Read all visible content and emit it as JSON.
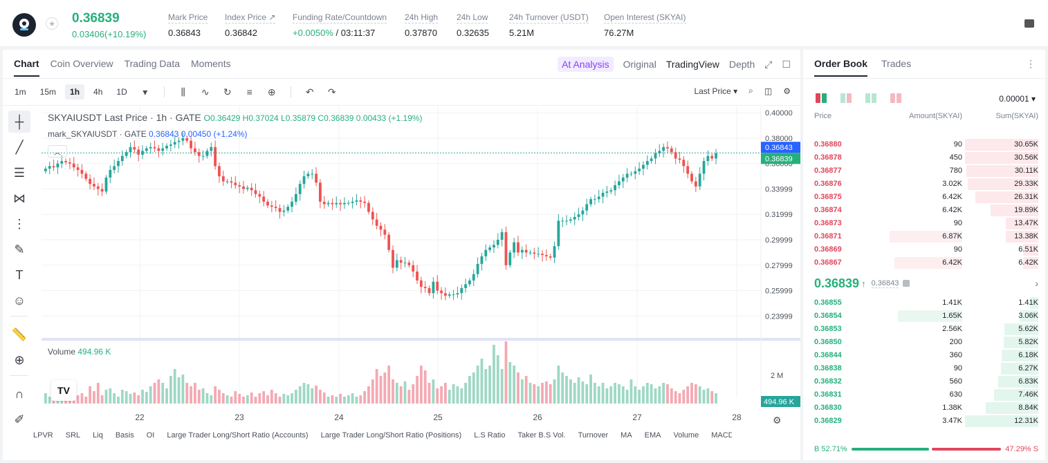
{
  "header": {
    "last_price": "0.36839",
    "change": "0.03406(+10.19%)",
    "stats": [
      {
        "label": "Mark Price",
        "value": "0.36843"
      },
      {
        "label": "Index Price ↗",
        "value": "0.36842"
      },
      {
        "label": "Funding Rate/Countdown",
        "value_green": "+0.0050%",
        "value": " / 03:11:37"
      },
      {
        "label": "24h High",
        "value": "0.37870"
      },
      {
        "label": "24h Low",
        "value": "0.32635"
      },
      {
        "label": "24h Turnover (USDT)",
        "value": "5.21M"
      },
      {
        "label": "Open Interest (SKYAI)",
        "value": "76.27M"
      }
    ]
  },
  "chart_panel": {
    "tabs": [
      "Chart",
      "Coin Overview",
      "Trading Data",
      "Moments"
    ],
    "right_tabs": {
      "ai": "A͏t Analysis",
      "original": "Original",
      "tradingview": "TradingView",
      "depth": "Depth"
    },
    "timeframes": [
      "1m",
      "15m",
      "1h",
      "4h",
      "1D"
    ],
    "price_type": "Last Price ▾",
    "legend": {
      "title": "SKYAIUSDT Last Price · 1h · GATE",
      "ohlc": "O0.36429 H0.37024 L0.35879 C0.36839 0.00433 (+1.19%)",
      "mark_label": "mark_SKYAIUSDT · GATE",
      "mark_values": "0.36843 0.00450 (+1.24%)"
    },
    "volume_label": "Volume",
    "volume_value": "494.96 K",
    "tv_logo": "TV",
    "indicators": [
      "LPVR",
      "SRL",
      "Liq",
      "Basis",
      "OI",
      "Large Trader Long/Short Ratio (Accounts)",
      "Large Trader Long/Short Ratio (Positions)",
      "L.S Ratio",
      "Taker B.S Vol.",
      "Turnover",
      "MA",
      "EMA",
      "Volume",
      "MACD"
    ]
  },
  "chart_data": {
    "type": "candlestick",
    "title": "SKYAIUSDT Last Price · 1h · GATE",
    "price_axis_ticks": [
      "0.40000",
      "0.38000",
      "0.36000",
      "0.33999",
      "0.31999",
      "0.29999",
      "0.27999",
      "0.25999",
      "0.23999"
    ],
    "price_axis_values": [
      0.4,
      0.38,
      0.36,
      0.34,
      0.32,
      0.3,
      0.28,
      0.26,
      0.24
    ],
    "ylim": [
      0.232,
      0.405
    ],
    "time_axis_ticks": [
      "22",
      "23",
      "24",
      "25",
      "26",
      "27",
      "28"
    ],
    "price_tags": [
      {
        "label": "0.36843",
        "value": 0.36843,
        "color": "#2962ff"
      },
      {
        "label": "0.36839",
        "value": 0.36839,
        "color": "#25b07b"
      }
    ],
    "volume_axis_tick": "2 M",
    "volume_tag": "494.96 K",
    "up_color": "#26a69a",
    "down_color": "#ef5350",
    "close_path": [
      0.356,
      0.358,
      0.357,
      0.36,
      0.362,
      0.361,
      0.36,
      0.357,
      0.355,
      0.352,
      0.348,
      0.344,
      0.342,
      0.34,
      0.338,
      0.349,
      0.355,
      0.358,
      0.362,
      0.366,
      0.369,
      0.373,
      0.371,
      0.367,
      0.37,
      0.372,
      0.373,
      0.372,
      0.37,
      0.372,
      0.374,
      0.375,
      0.377,
      0.378,
      0.38,
      0.378,
      0.372,
      0.369,
      0.366,
      0.366,
      0.37,
      0.373,
      0.358,
      0.35,
      0.346,
      0.346,
      0.345,
      0.343,
      0.342,
      0.34,
      0.341,
      0.339,
      0.336,
      0.334,
      0.33,
      0.327,
      0.326,
      0.325,
      0.322,
      0.323,
      0.326,
      0.33,
      0.336,
      0.344,
      0.35,
      0.352,
      0.352,
      0.345,
      0.33,
      0.328,
      0.329,
      0.328,
      0.329,
      0.328,
      0.329,
      0.329,
      0.33,
      0.331,
      0.33,
      0.329,
      0.322,
      0.316,
      0.311,
      0.308,
      0.304,
      0.292,
      0.278,
      0.284,
      0.282,
      0.282,
      0.28,
      0.275,
      0.268,
      0.263,
      0.262,
      0.258,
      0.267,
      0.26,
      0.258,
      0.256,
      0.257,
      0.257,
      0.258,
      0.262,
      0.265,
      0.268,
      0.273,
      0.281,
      0.287,
      0.292,
      0.294,
      0.296,
      0.3,
      0.306,
      0.28,
      0.29,
      0.298,
      0.29,
      0.292,
      0.29,
      0.29,
      0.289,
      0.289,
      0.288,
      0.287,
      0.286,
      0.295,
      0.315,
      0.315,
      0.315,
      0.316,
      0.318,
      0.32,
      0.323,
      0.328,
      0.332,
      0.332,
      0.334,
      0.337,
      0.338,
      0.339,
      0.343,
      0.346,
      0.349,
      0.352,
      0.352,
      0.354,
      0.356,
      0.359,
      0.362,
      0.364,
      0.368,
      0.37,
      0.373,
      0.372,
      0.369,
      0.364,
      0.363,
      0.358,
      0.352,
      0.346,
      0.342,
      0.352,
      0.362,
      0.366,
      0.364,
      0.368
    ],
    "volume_rel": [
      0.15,
      0.1,
      0.12,
      0.18,
      0.1,
      0.22,
      0.3,
      0.2,
      0.12,
      0.15,
      0.1,
      0.25,
      0.18,
      0.3,
      0.12,
      0.2,
      0.22,
      0.15,
      0.1,
      0.2,
      0.18,
      0.14,
      0.16,
      0.12,
      0.2,
      0.17,
      0.25,
      0.3,
      0.35,
      0.3,
      0.22,
      0.4,
      0.5,
      0.38,
      0.42,
      0.3,
      0.25,
      0.3,
      0.2,
      0.22,
      0.15,
      0.12,
      0.25,
      0.2,
      0.15,
      0.12,
      0.1,
      0.18,
      0.14,
      0.1,
      0.12,
      0.16,
      0.1,
      0.15,
      0.18,
      0.12,
      0.2,
      0.15,
      0.1,
      0.14,
      0.12,
      0.15,
      0.2,
      0.25,
      0.3,
      0.28,
      0.22,
      0.26,
      0.2,
      0.16,
      0.1,
      0.12,
      0.1,
      0.14,
      0.1,
      0.12,
      0.15,
      0.1,
      0.12,
      0.18,
      0.25,
      0.35,
      0.5,
      0.4,
      0.45,
      0.55,
      0.35,
      0.3,
      0.25,
      0.32,
      0.2,
      0.28,
      0.4,
      0.55,
      0.48,
      0.3,
      0.35,
      0.22,
      0.25,
      0.3,
      0.2,
      0.28,
      0.25,
      0.22,
      0.3,
      0.4,
      0.45,
      0.55,
      0.65,
      0.5,
      0.55,
      0.85,
      0.7,
      0.5,
      0.9,
      0.6,
      0.55,
      0.45,
      0.35,
      0.4,
      0.3,
      0.28,
      0.25,
      0.3,
      0.32,
      0.28,
      0.35,
      0.55,
      0.45,
      0.4,
      0.35,
      0.3,
      0.38,
      0.32,
      0.28,
      0.42,
      0.3,
      0.25,
      0.3,
      0.22,
      0.25,
      0.3,
      0.28,
      0.25,
      0.2,
      0.35,
      0.25,
      0.2,
      0.25,
      0.3,
      0.28,
      0.22,
      0.25,
      0.3,
      0.28,
      0.22,
      0.18,
      0.15,
      0.2,
      0.25,
      0.3,
      0.28,
      0.25,
      0.2,
      0.22,
      0.18,
      0.15
    ]
  },
  "orderbook": {
    "tabs": [
      "Order Book",
      "Trades"
    ],
    "precision": "0.00001 ▾",
    "headers": [
      "Price",
      "Amount(SKYAI)",
      "Sum(SKYAI)"
    ],
    "asks": [
      {
        "price": "0.36880",
        "amount": "90",
        "sum": "30.65K",
        "sum_rel": 1.0,
        "amt_rel": 0.0
      },
      {
        "price": "0.36878",
        "amount": "450",
        "sum": "30.56K",
        "sum_rel": 0.997,
        "amt_rel": 0.0
      },
      {
        "price": "0.36877",
        "amount": "780",
        "sum": "30.11K",
        "sum_rel": 0.98,
        "amt_rel": 0.0
      },
      {
        "price": "0.36876",
        "amount": "3.02K",
        "sum": "29.33K",
        "sum_rel": 0.96,
        "amt_rel": 0.0
      },
      {
        "price": "0.36875",
        "amount": "6.42K",
        "sum": "26.31K",
        "sum_rel": 0.86,
        "amt_rel": 0.0
      },
      {
        "price": "0.36874",
        "amount": "6.42K",
        "sum": "19.89K",
        "sum_rel": 0.65,
        "amt_rel": 0.0
      },
      {
        "price": "0.36873",
        "amount": "90",
        "sum": "13.47K",
        "sum_rel": 0.44,
        "amt_rel": 0.0
      },
      {
        "price": "0.36871",
        "amount": "6.87K",
        "sum": "13.38K",
        "sum_rel": 0.44,
        "amt_rel": 0.7
      },
      {
        "price": "0.36869",
        "amount": "90",
        "sum": "6.51K",
        "sum_rel": 0.21,
        "amt_rel": 0.0
      },
      {
        "price": "0.36867",
        "amount": "6.42K",
        "sum": "6.42K",
        "sum_rel": 0.21,
        "amt_rel": 0.65
      }
    ],
    "mid_price": "0.36839",
    "mid_arrow": "↑",
    "mark_price": "0.36843",
    "bids": [
      {
        "price": "0.36855",
        "amount": "1.41K",
        "sum": "1.41K",
        "sum_rel": 0.11,
        "amt_rel": 0.0
      },
      {
        "price": "0.36854",
        "amount": "1.65K",
        "sum": "3.06K",
        "sum_rel": 0.25,
        "amt_rel": 0.62
      },
      {
        "price": "0.36853",
        "amount": "2.56K",
        "sum": "5.62K",
        "sum_rel": 0.46,
        "amt_rel": 0.0
      },
      {
        "price": "0.36850",
        "amount": "200",
        "sum": "5.82K",
        "sum_rel": 0.47,
        "amt_rel": 0.0
      },
      {
        "price": "0.36844",
        "amount": "360",
        "sum": "6.18K",
        "sum_rel": 0.5,
        "amt_rel": 0.0
      },
      {
        "price": "0.36838",
        "amount": "90",
        "sum": "6.27K",
        "sum_rel": 0.51,
        "amt_rel": 0.0
      },
      {
        "price": "0.36832",
        "amount": "560",
        "sum": "6.83K",
        "sum_rel": 0.55,
        "amt_rel": 0.0
      },
      {
        "price": "0.36831",
        "amount": "630",
        "sum": "7.46K",
        "sum_rel": 0.6,
        "amt_rel": 0.0
      },
      {
        "price": "0.36830",
        "amount": "1.38K",
        "sum": "8.84K",
        "sum_rel": 0.72,
        "amt_rel": 0.0
      },
      {
        "price": "0.36829",
        "amount": "3.47K",
        "sum": "12.31K",
        "sum_rel": 1.0,
        "amt_rel": 0.0
      }
    ],
    "buy_ratio": "52.71%",
    "sell_ratio": "47.29%",
    "buy_label": "B",
    "sell_label": "S",
    "buy_fraction": 0.5271
  },
  "colors": {
    "green": "#25b07b",
    "red": "#e0465c",
    "accent_blue": "#2962ff"
  }
}
